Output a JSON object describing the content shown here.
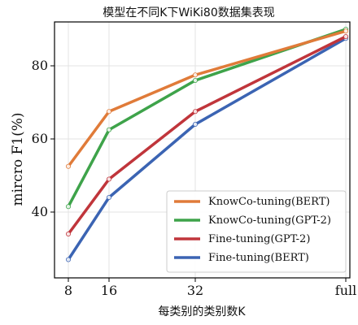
{
  "chart_data": {
    "type": "line",
    "title": "模型在不同K下WiKi80数据集表现",
    "xlabel": "每类别的类别数K",
    "ylabel": "mircro F1(%)",
    "categories": [
      "8",
      "16",
      "32",
      "full"
    ],
    "ylim": [
      22,
      92
    ],
    "yticks": [
      40,
      60,
      80
    ],
    "grid": true,
    "legend_position": "lower-right",
    "series": [
      {
        "name": "KnowCo-tuning(BERT)",
        "color": "#e07b39",
        "values": [
          52.5,
          67.5,
          77.5,
          89.5
        ]
      },
      {
        "name": "KnowCo-tuning(GPT-2)",
        "color": "#3ea34a",
        "values": [
          41.5,
          62.5,
          76.0,
          90.0
        ]
      },
      {
        "name": "Fine-tuning(GPT-2)",
        "color": "#c0353b",
        "values": [
          34.0,
          49.0,
          67.5,
          88.0
        ]
      },
      {
        "name": "Fine-tuning(BERT)",
        "color": "#3b64b3",
        "values": [
          27.0,
          44.0,
          64.0,
          87.5
        ]
      }
    ]
  }
}
